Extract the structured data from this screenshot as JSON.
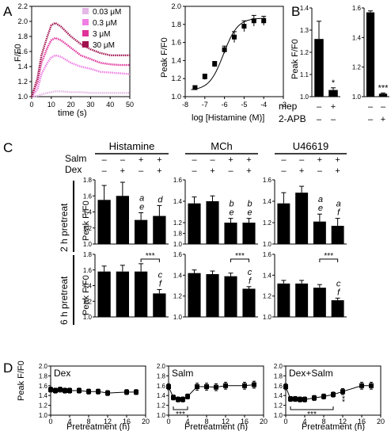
{
  "panel_labels": {
    "a": "A",
    "b": "B",
    "c": "C",
    "d": "D"
  },
  "panel_a": {
    "time_ylabel": "F/F0",
    "time_xlabel": "time (s)",
    "time_yticks": [
      "1.0",
      "1.2",
      "1.4",
      "1.6",
      "1.8",
      "2.0",
      "2.2"
    ],
    "time_xticks": [
      "0",
      "10",
      "20",
      "30",
      "40",
      "50"
    ],
    "dose_ylabel": "Peak F/F0",
    "dose_xlabel": "log [Histamine (M)]",
    "dose_yticks": [
      "1.0",
      "1.2",
      "1.4",
      "1.6",
      "1.8",
      "2.0"
    ],
    "dose_xticks": [
      "-8",
      "-7",
      "-6",
      "-5",
      "-4",
      "-3"
    ],
    "legend": [
      {
        "label": "0.03 μM",
        "color": "#e4b7e6"
      },
      {
        "label": "0.3 μM",
        "color": "#ef7fe4"
      },
      {
        "label": "3 μM",
        "color": "#e0329a"
      },
      {
        "label": "30 μM",
        "color": "#a0134e"
      }
    ]
  },
  "panel_b": {
    "ylabel": "Peak F/F0",
    "left_yticks": [
      "1.0",
      "1.1",
      "1.2",
      "1.3",
      "1.4"
    ],
    "right_yticks": [
      "1.0",
      "1.2",
      "1.4",
      "1.6"
    ],
    "row1_label": "mep",
    "row2_label": "2-APB",
    "left_row1": [
      "–",
      "+"
    ],
    "left_row2": [
      "–",
      "–"
    ],
    "right_row1": [
      "–",
      "–"
    ],
    "right_row2": [
      "–",
      "+"
    ],
    "left_star": "*",
    "right_star": "***"
  },
  "panel_c": {
    "headers": [
      "Histamine",
      "MCh",
      "U46619"
    ],
    "row_salm": "Salm",
    "row_dex": "Dex",
    "salm_signs": [
      "–",
      "–",
      "+",
      "+"
    ],
    "dex_signs": [
      "–",
      "+",
      "–",
      "+"
    ],
    "pretreat_2h": "2 h pretreat",
    "pretreat_6h": "6 h pretreat",
    "ylabel": "Peak F/F0",
    "yticks_hist_2h": [
      "1.0",
      "1.2",
      "1.4",
      "1.6",
      "1.8"
    ],
    "yticks_mch_2h": [
      "1.0",
      "1.2",
      "1.4",
      "1.6"
    ],
    "yticks_u_2h": [
      "1.0",
      "1.2",
      "1.4",
      "1.6"
    ],
    "yticks_6h": [
      "1.0",
      "1.2",
      "1.4",
      "1.6",
      "1.8"
    ],
    "yticks_u_6h": [
      "1.0",
      "1.2",
      "1.4",
      "1.6"
    ],
    "sig": "***"
  },
  "panel_d": {
    "ylabel": "Peak F/F0",
    "xlabel": "Pretreatment (h)",
    "yticks": [
      "1.0",
      "1.2",
      "1.4",
      "1.6",
      "1.8",
      "2.0"
    ],
    "xticks": [
      "0",
      "4",
      "8",
      "12",
      "16",
      "20"
    ],
    "sig": "***",
    "star": "*"
  },
  "chart_data": [
    {
      "type": "line",
      "panel": "A-left",
      "xlabel": "time (s)",
      "ylabel": "F/F0",
      "xlim": [
        0,
        50
      ],
      "ylim": [
        1.0,
        2.2
      ],
      "series": [
        {
          "name": "0.03 μM",
          "color": "#e4b7e6",
          "x": [
            0,
            3,
            5,
            8,
            10,
            12,
            15,
            20,
            25,
            30,
            35,
            40,
            45,
            50
          ],
          "y": [
            1.0,
            1.01,
            1.03,
            1.05,
            1.06,
            1.07,
            1.07,
            1.06,
            1.06,
            1.05,
            1.05,
            1.05,
            1.05,
            1.05
          ]
        },
        {
          "name": "0.3 μM",
          "color": "#ef7fe4",
          "x": [
            0,
            3,
            5,
            8,
            10,
            12,
            15,
            20,
            25,
            30,
            35,
            40,
            45,
            50
          ],
          "y": [
            1.0,
            1.1,
            1.3,
            1.45,
            1.52,
            1.55,
            1.53,
            1.45,
            1.4,
            1.37,
            1.33,
            1.32,
            1.31,
            1.3
          ]
        },
        {
          "name": "3 μM",
          "color": "#e0329a",
          "x": [
            0,
            3,
            5,
            8,
            10,
            12,
            15,
            20,
            25,
            30,
            35,
            40,
            45,
            50
          ],
          "y": [
            1.0,
            1.2,
            1.45,
            1.65,
            1.75,
            1.78,
            1.75,
            1.65,
            1.55,
            1.5,
            1.45,
            1.43,
            1.42,
            1.42
          ]
        },
        {
          "name": "30 μM",
          "color": "#a0134e",
          "x": [
            0,
            3,
            5,
            8,
            10,
            12,
            15,
            20,
            25,
            30,
            35,
            40,
            45,
            50
          ],
          "y": [
            1.0,
            1.25,
            1.55,
            1.8,
            1.95,
            1.98,
            1.93,
            1.8,
            1.7,
            1.63,
            1.58,
            1.55,
            1.55,
            1.55
          ]
        }
      ]
    },
    {
      "type": "scatter",
      "panel": "A-right",
      "xlabel": "log [Histamine (M)]",
      "ylabel": "Peak F/F0",
      "xlim": [
        -8,
        -3
      ],
      "ylim": [
        1.0,
        2.0
      ],
      "x": [
        -7.5,
        -7,
        -6.5,
        -6,
        -5.5,
        -5,
        -4.5,
        -4
      ],
      "y": [
        1.1,
        1.22,
        1.36,
        1.52,
        1.66,
        1.78,
        1.84,
        1.84
      ],
      "err": [
        0.02,
        0.03,
        0.03,
        0.04,
        0.06,
        0.06,
        0.06,
        0.05
      ],
      "fit": "sigmoid"
    },
    {
      "type": "bar",
      "panel": "B-left",
      "ylim": [
        1.0,
        1.4
      ],
      "ylabel": "Peak F/F0",
      "values": [
        1.26,
        1.03
      ],
      "err": [
        0.08,
        0.01
      ],
      "annotations": [
        "",
        "*"
      ]
    },
    {
      "type": "bar",
      "panel": "B-right",
      "ylim": [
        1.0,
        1.6
      ],
      "ylabel": "Peak F/F0",
      "values": [
        1.57,
        1.02
      ],
      "err": [
        0.01,
        0.005
      ],
      "annotations": [
        "",
        "***"
      ]
    },
    {
      "type": "bar",
      "panel": "C",
      "groups": [
        {
          "agonist": "Histamine",
          "pretreat": "2 h",
          "ylim": [
            1.0,
            1.8
          ],
          "values": [
            1.55,
            1.6,
            1.3,
            1.35
          ],
          "err": [
            0.18,
            0.17,
            0.09,
            0.13
          ],
          "letters": [
            "",
            "",
            "a e",
            "d"
          ]
        },
        {
          "agonist": "MCh",
          "pretreat": "2 h",
          "ylim": [
            1.0,
            1.6
          ],
          "values": [
            1.38,
            1.4,
            1.2,
            1.2
          ],
          "err": [
            0.06,
            0.05,
            0.04,
            0.04
          ],
          "letters": [
            "",
            "",
            "b e",
            "b e"
          ]
        },
        {
          "agonist": "U46619",
          "pretreat": "2 h",
          "ylim": [
            1.0,
            1.6
          ],
          "values": [
            1.38,
            1.48,
            1.21,
            1.17
          ],
          "err": [
            0.1,
            0.06,
            0.07,
            0.07
          ],
          "letters": [
            "",
            "",
            "a e",
            "a f"
          ]
        },
        {
          "agonist": "Histamine",
          "pretreat": "6 h",
          "ylim": [
            1.0,
            1.8
          ],
          "values": [
            1.58,
            1.58,
            1.58,
            1.3
          ],
          "err": [
            0.07,
            0.08,
            0.1,
            0.05
          ],
          "letters": [
            "",
            "",
            "",
            "c f"
          ]
        },
        {
          "agonist": "MCh",
          "pretreat": "6 h",
          "ylim": [
            1.0,
            1.6
          ],
          "values": [
            1.42,
            1.41,
            1.39,
            1.27
          ],
          "err": [
            0.03,
            0.03,
            0.03,
            0.02
          ],
          "letters": [
            "",
            "",
            "",
            "c f"
          ]
        },
        {
          "agonist": "U46619",
          "pretreat": "6 h",
          "ylim": [
            1.0,
            1.6
          ],
          "values": [
            1.32,
            1.32,
            1.28,
            1.16
          ],
          "err": [
            0.03,
            0.03,
            0.03,
            0.02
          ],
          "letters": [
            "",
            "",
            "",
            "c f"
          ]
        }
      ]
    },
    {
      "type": "line",
      "panel": "D-Dex",
      "title": "Dex",
      "xlabel": "Pretreatment (h)",
      "ylabel": "Peak F/F0",
      "xlim": [
        0,
        20
      ],
      "ylim": [
        1.0,
        2.0
      ],
      "x": [
        0,
        1,
        2,
        3,
        4,
        6,
        8,
        10,
        12,
        16,
        18
      ],
      "y": [
        1.52,
        1.5,
        1.52,
        1.5,
        1.5,
        1.5,
        1.48,
        1.48,
        1.45,
        1.47,
        1.47
      ],
      "err": [
        0.05,
        0.05,
        0.05,
        0.05,
        0.05,
        0.05,
        0.05,
        0.05,
        0.05,
        0.05,
        0.05
      ]
    },
    {
      "type": "line",
      "panel": "D-Salm",
      "title": "Salm",
      "xlabel": "Pretreatment (h)",
      "ylabel": "Peak F/F0",
      "xlim": [
        0,
        20
      ],
      "ylim": [
        1.0,
        2.0
      ],
      "x": [
        0,
        1,
        2,
        3,
        4,
        6,
        8,
        10,
        12,
        16,
        18
      ],
      "y": [
        1.58,
        1.36,
        1.32,
        1.32,
        1.38,
        1.58,
        1.58,
        1.57,
        1.6,
        1.6,
        1.62
      ],
      "err": [
        0.06,
        0.05,
        0.05,
        0.05,
        0.05,
        0.07,
        0.07,
        0.07,
        0.07,
        0.07,
        0.07
      ]
    },
    {
      "type": "line",
      "panel": "D-Dex+Salm",
      "title": "Dex+Salm",
      "xlabel": "Pretreatment (h)",
      "ylabel": "Peak F/F0",
      "xlim": [
        0,
        20
      ],
      "ylim": [
        1.0,
        2.0
      ],
      "x": [
        0,
        1,
        2,
        3,
        4,
        6,
        8,
        10,
        12,
        16,
        18
      ],
      "y": [
        1.58,
        1.33,
        1.33,
        1.32,
        1.32,
        1.35,
        1.38,
        1.42,
        1.48,
        1.6,
        1.6
      ],
      "err": [
        0.06,
        0.05,
        0.05,
        0.05,
        0.05,
        0.05,
        0.05,
        0.05,
        0.06,
        0.07,
        0.07
      ]
    }
  ]
}
